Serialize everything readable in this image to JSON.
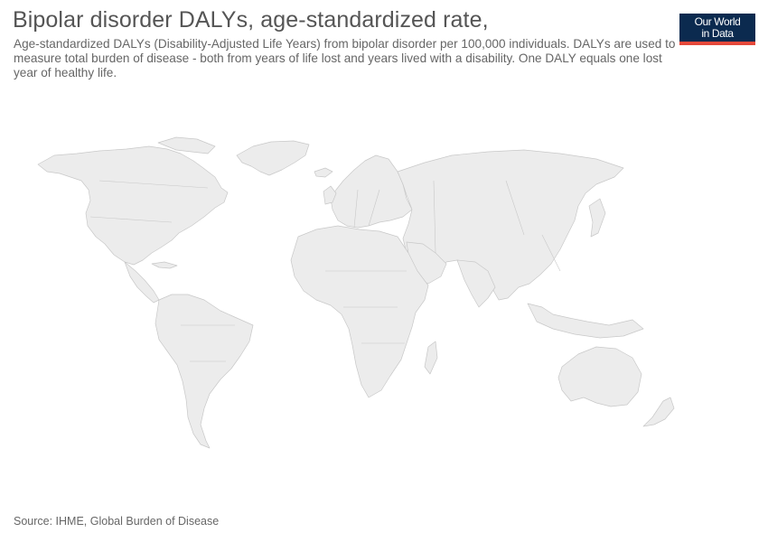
{
  "header": {
    "title": "Bipolar disorder DALYs, age-standardized rate,",
    "subtitle": "Age-standardized DALYs (Disability-Adjusted Life Years) from bipolar disorder per 100,000 individuals. DALYs are used to measure total burden of disease - both from years of life lost and years lived with a disability. One DALY equals one lost year of healthy life."
  },
  "logo": {
    "line1": "Our World",
    "line2": "in Data"
  },
  "footer": {
    "source": "Source: IHME, Global Burden of Disease"
  },
  "map": {
    "fill_color": "#ececec",
    "border_color": "#c8c8c8"
  },
  "colors": {
    "logo_bg": "#0b2a4f",
    "logo_bar": "#e5493b"
  }
}
